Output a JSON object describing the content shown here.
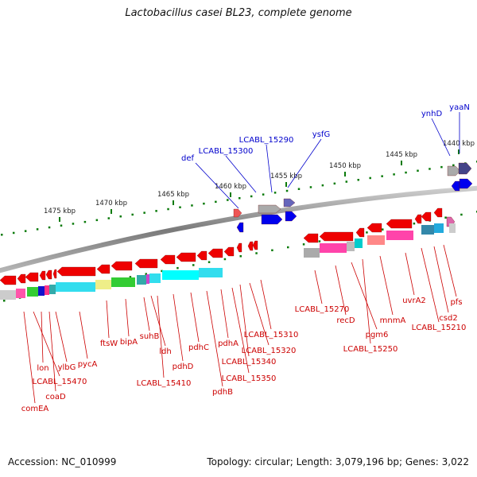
{
  "title": "Lactobacillus casei BL23, complete genome",
  "footer": {
    "accession": "Accession: NC_010999",
    "topology": "Topology: circular; Length: 3,079,196 bp; Genes: 3,022"
  },
  "colors": {
    "forward_label": "#0000cc",
    "reverse_label": "#cc0000",
    "tick": "#0a7a0a",
    "backbone": "#8a8a8a"
  },
  "kbp_labels": [
    "1475 kbp",
    "1470 kbp",
    "1465 kbp",
    "1460 kbp",
    "1455 kbp",
    "1450 kbp",
    "1445 kbp",
    "1440 kbp"
  ],
  "genes_forward": [
    "def",
    "LCABL_15300",
    "LCABL_15290",
    "ysfG",
    "ynhD",
    "yaaN"
  ],
  "genes_reverse": [
    "comEA",
    "LCABL_15470",
    "coaD",
    "lon",
    "ylbG",
    "pycA",
    "ftsW",
    "bipA",
    "suhB",
    "ldh",
    "LCABL_15410",
    "pdhD",
    "pdhC",
    "pdhB",
    "pdhA",
    "LCABL_15350",
    "LCABL_15340",
    "LCABL_15320",
    "LCABL_15310",
    "LCABL_15270",
    "recD",
    "pgm6",
    "LCABL_15250",
    "mnmA",
    "uvrA2",
    "LCABL_15210",
    "csd2",
    "pfs"
  ]
}
